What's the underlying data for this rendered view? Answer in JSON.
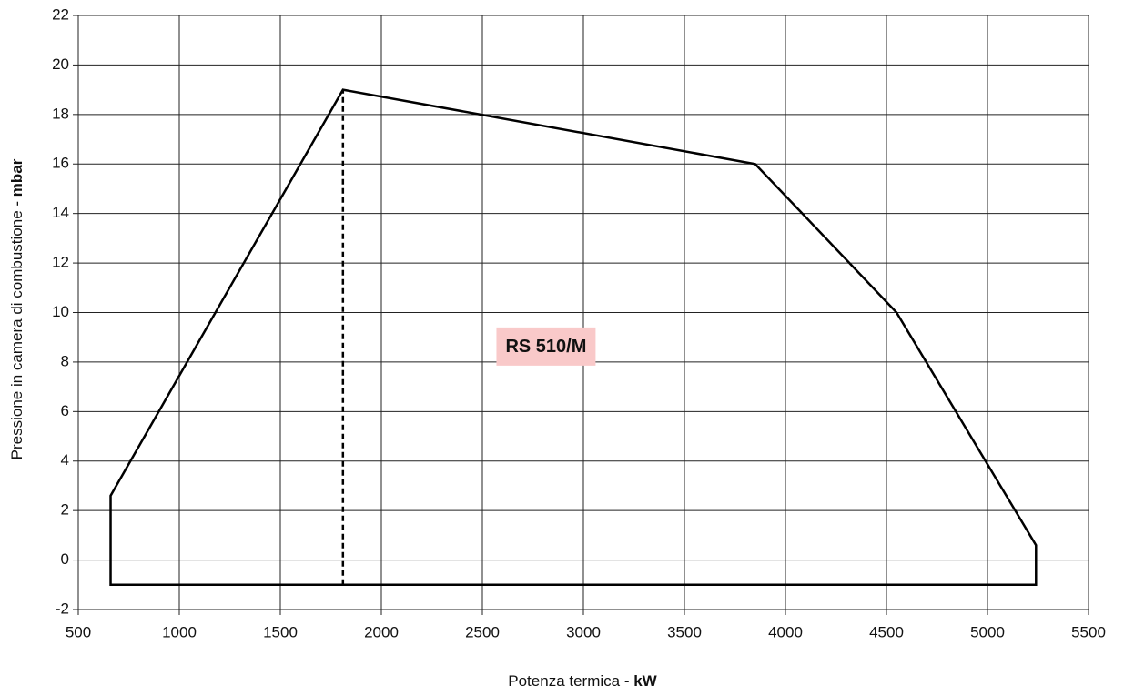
{
  "chart_data": {
    "type": "line",
    "x_label": "Potenza termica - ",
    "x_label_unit": "kW",
    "y_label": "Pressione in camera di combustione - ",
    "y_label_unit": "mbar",
    "xlim": [
      500,
      5500
    ],
    "xticks": [
      500,
      1000,
      1500,
      2000,
      2500,
      3000,
      3500,
      4000,
      4500,
      5000,
      5500
    ],
    "ylim": [
      -2,
      22
    ],
    "yticks": [
      -2,
      0,
      2,
      4,
      6,
      8,
      10,
      12,
      14,
      16,
      18,
      20,
      22
    ],
    "grid": true,
    "series": [
      {
        "x": [
          660,
          660,
          1810,
          3850,
          4550,
          5240,
          5240
        ],
        "y": [
          -1,
          2.6,
          19,
          16,
          10,
          0.6,
          -1
        ],
        "color": "#000000",
        "closed": true,
        "dash": false
      },
      {
        "x": [
          1810,
          1810
        ],
        "y": [
          -1,
          19
        ],
        "color": "#000000",
        "closed": false,
        "dash": true
      }
    ],
    "annotations": [
      {
        "text": "RS 510/M",
        "x": 2815,
        "y": 8.6,
        "background": "#f9c9c9"
      }
    ]
  }
}
